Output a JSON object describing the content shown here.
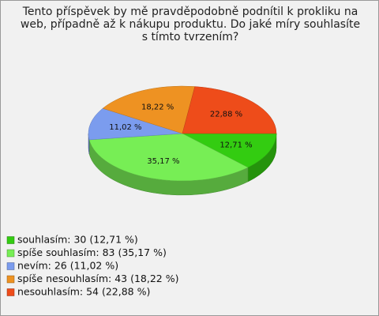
{
  "chart_data": {
    "type": "pie3d",
    "title": "Tento příspěvek by mě pravděpodobně podnítil k prokliku na web, případně až k nákupu produktu. Do jaké míry souhlasíte s tímto tvrzením?",
    "categories": [
      "souhlasím: 30 (12,71 %)",
      "spíše souhlasím: 83 (35,17 %)",
      "nevím: 26 (11,02 %)",
      "spíše nesouhlasím: 43 (18,22 %)",
      "nesouhlasím: 54 (22,88 %)"
    ],
    "values": [
      12.71,
      35.17,
      11.02,
      18.22,
      22.88
    ],
    "value_labels": [
      "12,71 %",
      "35,17 %",
      "11,02 %",
      "18,22 %",
      "22,88 %"
    ],
    "colors": [
      "#33cc11",
      "#77ee55",
      "#7b9cee",
      "#ee9222",
      "#ee4c1a"
    ],
    "legend": "bottom-left"
  }
}
